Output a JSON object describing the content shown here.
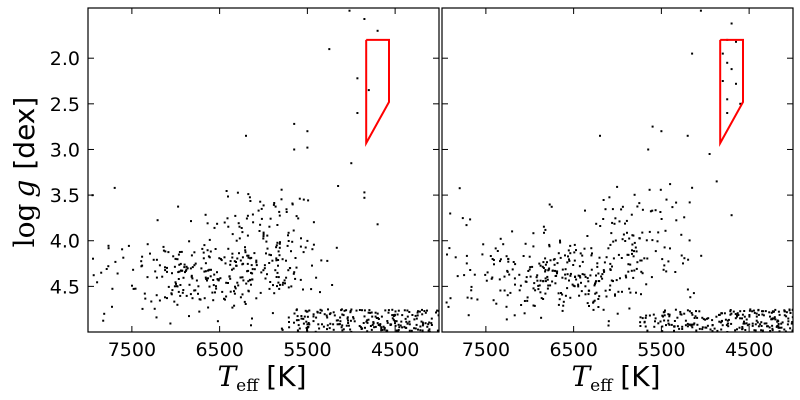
{
  "chart_data": [
    {
      "type": "scatter",
      "panel": "left",
      "xlabel": {
        "symbol": "T",
        "subscript": "eff",
        "unit": "[K]"
      },
      "ylabel": {
        "symbol": "log",
        "var": "g",
        "unit": "[dex]"
      },
      "xlim": [
        8000,
        4000
      ],
      "ylim": [
        5.0,
        1.45
      ],
      "xticks": [
        7500,
        6500,
        5500,
        4500
      ],
      "yticks": [
        2.0,
        2.5,
        3.0,
        3.5,
        4.0,
        4.5
      ],
      "xtick_labels": [
        "7500",
        "6500",
        "5500",
        "4500"
      ],
      "ytick_labels": [
        "2.0",
        "2.5",
        "3.0",
        "3.5",
        "4.0",
        "4.5"
      ],
      "grid": false,
      "marker_color": "#000000",
      "selection_box": {
        "color": "#ff0000",
        "vertices": [
          [
            4830,
            1.8
          ],
          [
            4570,
            1.8
          ],
          [
            4570,
            2.48
          ],
          [
            4830,
            2.93
          ],
          [
            4830,
            1.8
          ]
        ]
      },
      "giant_points": [
        [
          5020,
          1.48
        ],
        [
          4850,
          1.57
        ],
        [
          4700,
          1.7
        ],
        [
          5250,
          1.9
        ],
        [
          4930,
          2.22
        ],
        [
          4930,
          2.6
        ],
        [
          5650,
          2.72
        ],
        [
          5500,
          2.8
        ],
        [
          5650,
          3.0
        ],
        [
          5500,
          2.98
        ],
        [
          6200,
          2.85
        ],
        [
          5000,
          3.15
        ],
        [
          4850,
          3.53
        ],
        [
          4850,
          3.47
        ],
        [
          5150,
          3.4
        ],
        [
          4700,
          3.82
        ],
        [
          4800,
          2.35
        ]
      ],
      "cloud": {
        "seed": 11,
        "count": 380
      },
      "dwarf_strip": {
        "seed": 23,
        "count": 230,
        "x_range": [
          5800,
          4000
        ],
        "y_range": [
          4.75,
          5.0
        ]
      }
    },
    {
      "type": "scatter",
      "panel": "right",
      "xlabel": {
        "symbol": "T",
        "subscript": "eff",
        "unit": "[K]"
      },
      "xlim": [
        8000,
        4000
      ],
      "ylim": [
        5.0,
        1.45
      ],
      "xticks": [
        7500,
        6500,
        5500,
        4500
      ],
      "yticks": [
        2.0,
        2.5,
        3.0,
        3.5,
        4.0,
        4.5
      ],
      "xtick_labels": [
        "7500",
        "6500",
        "5500",
        "4500"
      ],
      "grid": false,
      "marker_color": "#000000",
      "selection_box": {
        "color": "#ff0000",
        "vertices": [
          [
            4830,
            1.8
          ],
          [
            4570,
            1.8
          ],
          [
            4570,
            2.48
          ],
          [
            4830,
            2.93
          ],
          [
            4830,
            1.8
          ]
        ]
      },
      "giant_points": [
        [
          5050,
          1.48
        ],
        [
          4700,
          1.62
        ],
        [
          4750,
          1.8
        ],
        [
          4650,
          1.82
        ],
        [
          4800,
          1.95
        ],
        [
          5150,
          1.95
        ],
        [
          4750,
          2.05
        ],
        [
          4700,
          2.12
        ],
        [
          4800,
          2.25
        ],
        [
          4650,
          2.28
        ],
        [
          4750,
          2.45
        ],
        [
          4600,
          2.5
        ],
        [
          4750,
          2.6
        ],
        [
          5600,
          2.75
        ],
        [
          5500,
          2.8
        ],
        [
          5200,
          2.85
        ],
        [
          5650,
          3.0
        ],
        [
          6200,
          2.85
        ],
        [
          5400,
          3.38
        ],
        [
          4950,
          3.05
        ],
        [
          4870,
          3.35
        ],
        [
          4700,
          3.72
        ],
        [
          5150,
          3.42
        ]
      ],
      "cloud": {
        "seed": 37,
        "count": 380
      },
      "dwarf_strip": {
        "seed": 53,
        "count": 230,
        "x_range": [
          5800,
          4000
        ],
        "y_range": [
          4.75,
          5.0
        ]
      }
    }
  ]
}
